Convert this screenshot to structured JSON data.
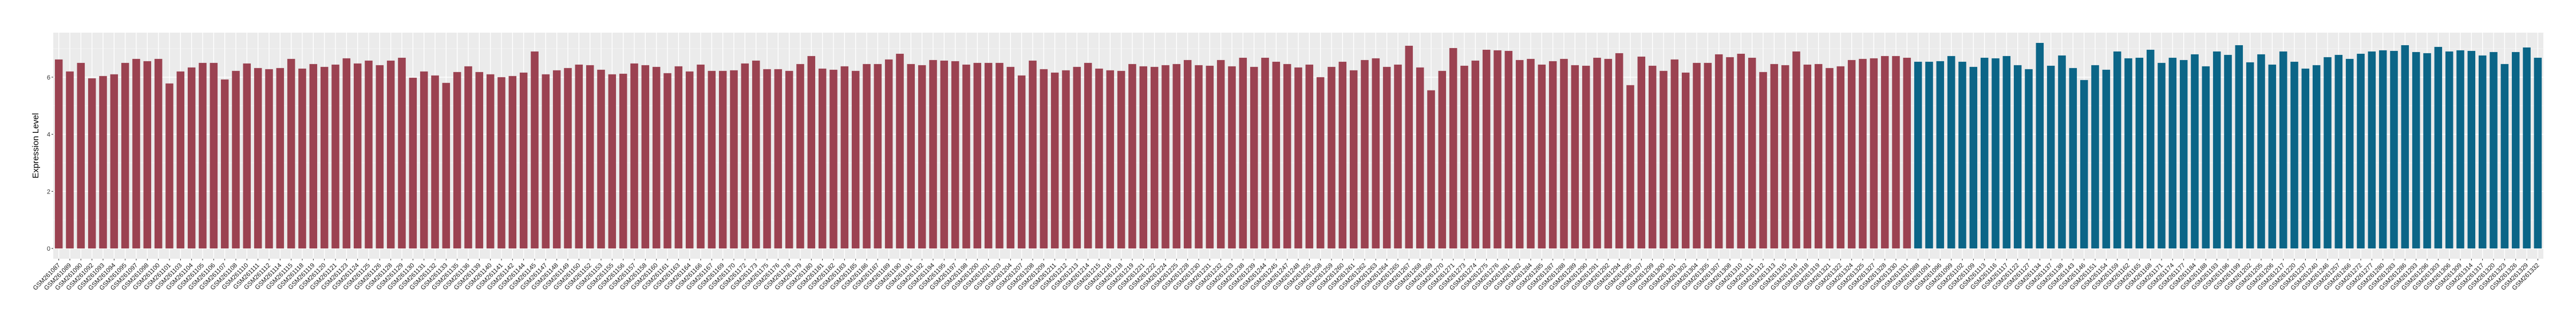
{
  "chart_data": {
    "type": "bar",
    "title": "",
    "xlabel": "",
    "ylabel": "Expression Level",
    "ylim": [
      -0.36,
      7.56
    ],
    "yticks": [
      0,
      2,
      4,
      6
    ],
    "grid": true,
    "panel_background": "#EBEBEB",
    "legend": "none",
    "series": [
      {
        "color": "#9B4251",
        "categories": [
          "GSM261087",
          "GSM261089",
          "GSM261090",
          "GSM261092",
          "GSM261093",
          "GSM261094",
          "GSM261095",
          "GSM261097",
          "GSM261098",
          "GSM261100",
          "GSM261101",
          "GSM261103",
          "GSM261104",
          "GSM261105",
          "GSM261106",
          "GSM261107",
          "GSM261108",
          "GSM261110",
          "GSM261111",
          "GSM261112",
          "GSM261114",
          "GSM261115",
          "GSM261118",
          "GSM261119",
          "GSM261120",
          "GSM261121",
          "GSM261123",
          "GSM261124",
          "GSM261125",
          "GSM261126",
          "GSM261128",
          "GSM261129",
          "GSM261130",
          "GSM261131",
          "GSM261132",
          "GSM261133",
          "GSM261135",
          "GSM261136",
          "GSM261139",
          "GSM261140",
          "GSM261141",
          "GSM261142",
          "GSM261144",
          "GSM261145",
          "GSM261147",
          "GSM261148",
          "GSM261149",
          "GSM261150",
          "GSM261152",
          "GSM261153",
          "GSM261155",
          "GSM261156",
          "GSM261157",
          "GSM261158",
          "GSM261160",
          "GSM261161",
          "GSM261163",
          "GSM261164",
          "GSM261166",
          "GSM261167",
          "GSM261169",
          "GSM261170",
          "GSM261172",
          "GSM261173",
          "GSM261175",
          "GSM261176",
          "GSM261178",
          "GSM261179",
          "GSM261180",
          "GSM261181",
          "GSM261182",
          "GSM261183",
          "GSM261185",
          "GSM261186",
          "GSM261187",
          "GSM261189",
          "GSM261190",
          "GSM261191",
          "GSM261192",
          "GSM261194",
          "GSM261195",
          "GSM261197",
          "GSM261198",
          "GSM261200",
          "GSM261201",
          "GSM261203",
          "GSM261204",
          "GSM261207",
          "GSM261208",
          "GSM261209",
          "GSM261211",
          "GSM261212",
          "GSM261213",
          "GSM261214",
          "GSM261215",
          "GSM261216",
          "GSM261218",
          "GSM261219",
          "GSM261221",
          "GSM261222",
          "GSM261224",
          "GSM261225",
          "GSM261228",
          "GSM261230",
          "GSM261231",
          "GSM261232",
          "GSM261233",
          "GSM261238",
          "GSM261239",
          "GSM261244",
          "GSM261245",
          "GSM261247",
          "GSM261248",
          "GSM261255",
          "GSM261258",
          "GSM261259",
          "GSM261260",
          "GSM261261",
          "GSM261262",
          "GSM261263",
          "GSM261264",
          "GSM261265",
          "GSM261267",
          "GSM261268",
          "GSM261269",
          "GSM261270",
          "GSM261271",
          "GSM261273",
          "GSM261274",
          "GSM261275",
          "GSM261276",
          "GSM261281",
          "GSM261282",
          "GSM261284",
          "GSM261285",
          "GSM261287",
          "GSM261288",
          "GSM261289",
          "GSM261290",
          "GSM261291",
          "GSM261292",
          "GSM261294",
          "GSM261295",
          "GSM261297",
          "GSM261299",
          "GSM261300",
          "GSM261301",
          "GSM261302",
          "GSM261304",
          "GSM261305",
          "GSM261307",
          "GSM261308",
          "GSM261310",
          "GSM261311",
          "GSM261312",
          "GSM261313",
          "GSM261315",
          "GSM261316",
          "GSM261318",
          "GSM261319",
          "GSM261321",
          "GSM261322",
          "GSM261324",
          "GSM261325",
          "GSM261327",
          "GSM261328",
          "GSM261330",
          "GSM261331"
        ],
        "values": [
          6.62,
          6.2,
          6.5,
          5.96,
          6.04,
          6.1,
          6.5,
          6.64,
          6.56,
          6.64,
          5.78,
          6.2,
          6.34,
          6.5,
          6.5,
          5.92,
          6.22,
          6.48,
          6.32,
          6.28,
          6.32,
          6.64,
          6.3,
          6.46,
          6.36,
          6.44,
          6.66,
          6.48,
          6.58,
          6.42,
          6.58,
          6.68,
          5.98,
          6.2,
          6.06,
          5.8,
          6.18,
          6.38,
          6.18,
          6.1,
          6.0,
          6.04,
          6.16,
          6.9,
          6.1,
          6.24,
          6.32,
          6.44,
          6.42,
          6.26,
          6.1,
          6.12,
          6.48,
          6.42,
          6.36,
          6.14,
          6.38,
          6.2,
          6.44,
          6.22,
          6.22,
          6.24,
          6.48,
          6.58,
          6.28,
          6.28,
          6.22,
          6.46,
          6.74,
          6.3,
          6.26,
          6.38,
          6.22,
          6.46,
          6.46,
          6.62,
          6.82,
          6.46,
          6.42,
          6.6,
          6.58,
          6.56,
          6.44,
          6.5,
          6.5,
          6.5,
          6.36,
          6.06,
          6.58,
          6.28,
          6.16,
          6.24,
          6.36,
          6.5,
          6.3,
          6.24,
          6.22,
          6.46,
          6.38,
          6.36,
          6.42,
          6.46,
          6.6,
          6.42,
          6.4,
          6.6,
          6.38,
          6.68,
          6.36,
          6.68,
          6.54,
          6.46,
          6.34,
          6.44,
          6.0,
          6.36,
          6.54,
          6.24,
          6.6,
          6.66,
          6.36,
          6.44,
          7.1,
          6.34,
          5.54,
          6.22,
          7.02,
          6.4,
          6.58,
          6.96,
          6.94,
          6.92,
          6.6,
          6.64,
          6.44,
          6.56,
          6.64,
          6.42,
          6.4,
          6.68,
          6.64,
          6.84,
          5.72,
          6.72,
          6.4,
          6.22,
          6.62,
          6.16,
          6.5,
          6.5,
          6.8,
          6.7,
          6.82,
          6.68,
          6.18,
          6.46,
          6.42,
          6.9,
          6.44,
          6.46,
          6.32,
          6.38,
          6.6,
          6.64,
          6.66,
          6.74,
          6.74,
          6.68
        ]
      },
      {
        "color": "#0B6587",
        "categories": [
          "GSM261088",
          "GSM261091",
          "GSM261096",
          "GSM261099",
          "GSM261102",
          "GSM261109",
          "GSM261113",
          "GSM261116",
          "GSM261117",
          "GSM261122",
          "GSM261127",
          "GSM261134",
          "GSM261137",
          "GSM261138",
          "GSM261143",
          "GSM261146",
          "GSM261151",
          "GSM261154",
          "GSM261159",
          "GSM261162",
          "GSM261165",
          "GSM261168",
          "GSM261171",
          "GSM261174",
          "GSM261177",
          "GSM261184",
          "GSM261188",
          "GSM261193",
          "GSM261196",
          "GSM261199",
          "GSM261202",
          "GSM261205",
          "GSM261206",
          "GSM261217",
          "GSM261220",
          "GSM261237",
          "GSM261240",
          "GSM261246",
          "GSM261257",
          "GSM261266",
          "GSM261272",
          "GSM261277",
          "GSM261280",
          "GSM261283",
          "GSM261286",
          "GSM261293",
          "GSM261296",
          "GSM261303",
          "GSM261306",
          "GSM261309",
          "GSM261314",
          "GSM261317",
          "GSM261320",
          "GSM261323",
          "GSM261326",
          "GSM261329",
          "GSM261332"
        ],
        "values": [
          6.54,
          6.54,
          6.56,
          6.74,
          6.54,
          6.36,
          6.68,
          6.66,
          6.74,
          6.42,
          6.28,
          7.2,
          6.4,
          6.76,
          6.32,
          5.9,
          6.42,
          6.26,
          6.9,
          6.66,
          6.68,
          6.96,
          6.5,
          6.68,
          6.6,
          6.8,
          6.38,
          6.9,
          6.78,
          7.12,
          6.52,
          6.8,
          6.44,
          6.9,
          6.54,
          6.3,
          6.42,
          6.7,
          6.78,
          6.64,
          6.82,
          6.9,
          6.94,
          6.92,
          7.12,
          6.88,
          6.84,
          7.06,
          6.9,
          6.94,
          6.92,
          6.76,
          6.88,
          6.46,
          6.88,
          7.04,
          6.68
        ]
      }
    ]
  }
}
